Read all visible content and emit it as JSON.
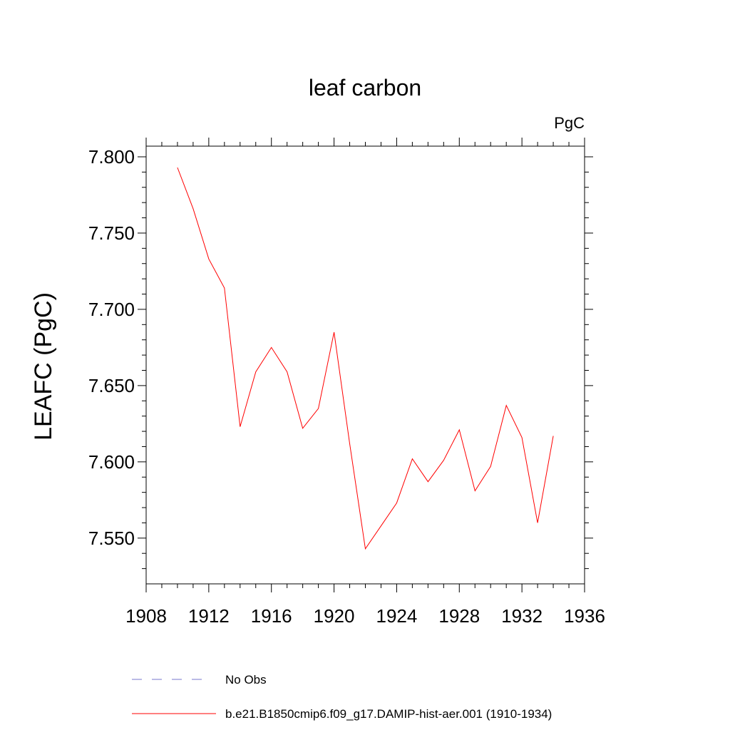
{
  "chart_data": {
    "type": "line",
    "title": "leaf carbon",
    "units": "PgC",
    "ylabel": "LEAFC  (PgC)",
    "xlabel": "",
    "xlim": [
      1908,
      1936
    ],
    "ylim": [
      7.52,
      7.807
    ],
    "x_ticks": [
      "1908",
      "1912",
      "1916",
      "1920",
      "1924",
      "1928",
      "1932",
      "1936"
    ],
    "y_ticks": [
      "7.550",
      "7.600",
      "7.650",
      "7.700",
      "7.750",
      "7.800"
    ],
    "series": [
      {
        "name": "b.e21.B1850cmip6.f09_g17.DAMIP-hist-aer.001 (1910-1934)",
        "color": "#ff0000",
        "x": [
          1910,
          1911,
          1912,
          1913,
          1914,
          1915,
          1916,
          1917,
          1918,
          1919,
          1920,
          1921,
          1922,
          1923,
          1924,
          1925,
          1926,
          1927,
          1928,
          1929,
          1930,
          1931,
          1932,
          1933,
          1934
        ],
        "y": [
          7.793,
          7.766,
          7.733,
          7.714,
          7.623,
          7.659,
          7.675,
          7.659,
          7.622,
          7.635,
          7.685,
          7.612,
          7.543,
          7.558,
          7.573,
          7.602,
          7.587,
          7.601,
          7.621,
          7.581,
          7.597,
          7.637,
          7.616,
          7.56,
          7.617
        ]
      }
    ],
    "legend": [
      {
        "label": "No Obs",
        "style": "dashed",
        "color": "#7777cc"
      },
      {
        "label": "b.e21.B1850cmip6.f09_g17.DAMIP-hist-aer.001 (1910-1934)",
        "style": "solid",
        "color": "#ff0000"
      }
    ],
    "legend_placement": "bottom",
    "grid": false
  }
}
